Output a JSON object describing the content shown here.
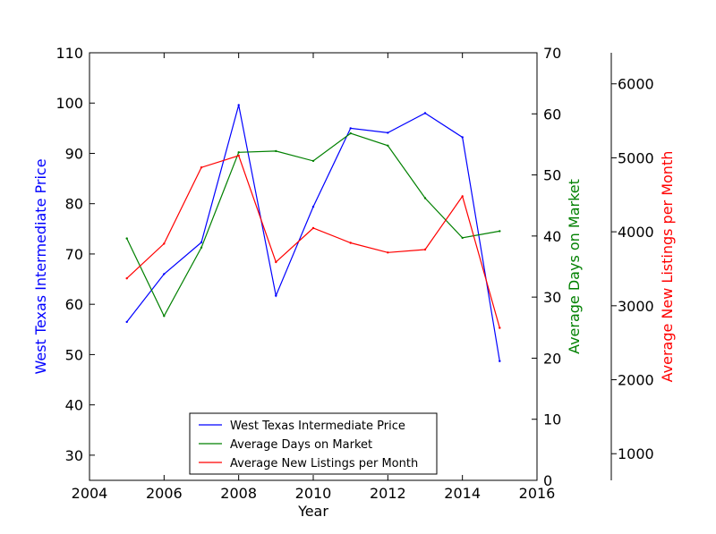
{
  "chart_data": {
    "type": "line",
    "xlabel": "Year",
    "xlim": [
      2004,
      2016
    ],
    "x_ticks": [
      2004,
      2006,
      2008,
      2010,
      2012,
      2014,
      2016
    ],
    "x": [
      2005,
      2006,
      2007,
      2008,
      2009,
      2010,
      2011,
      2012,
      2013,
      2014,
      2015
    ],
    "axes": {
      "left": {
        "label": "West Texas Intermediate Price",
        "color": "#0000ff",
        "ylim": [
          25,
          110
        ],
        "ticks": [
          30,
          40,
          50,
          60,
          70,
          80,
          90,
          100,
          110
        ]
      },
      "right": {
        "label": "Average Days on Market",
        "color": "#008000",
        "ylim": [
          0,
          70
        ],
        "ticks": [
          0,
          10,
          20,
          30,
          40,
          50,
          60,
          70
        ]
      },
      "far_right": {
        "label": "Average New Listings per Month",
        "color": "#ff0000",
        "ylim": [
          640,
          6420
        ],
        "ticks": [
          1000,
          2000,
          3000,
          4000,
          5000,
          6000
        ]
      }
    },
    "series": [
      {
        "name": "West Texas Intermediate Price",
        "axis": "left",
        "color": "#0000ff",
        "values": [
          56.5,
          66.0,
          72.3,
          99.6,
          61.7,
          79.4,
          95.0,
          94.1,
          98.0,
          93.2,
          48.7
        ]
      },
      {
        "name": "Average Days on Market",
        "axis": "right",
        "color": "#008000",
        "values": [
          39.6,
          26.9,
          38.1,
          53.7,
          53.9,
          52.3,
          56.8,
          54.8,
          46.2,
          39.7,
          40.8
        ]
      },
      {
        "name": "Average New Listings per Month",
        "axis": "far_right",
        "color": "#ff0000",
        "values": [
          3370,
          3840,
          4870,
          5030,
          3590,
          4050,
          3850,
          3720,
          3760,
          4480,
          2700
        ]
      }
    ],
    "legend_position": "lower-center",
    "grid": false
  }
}
